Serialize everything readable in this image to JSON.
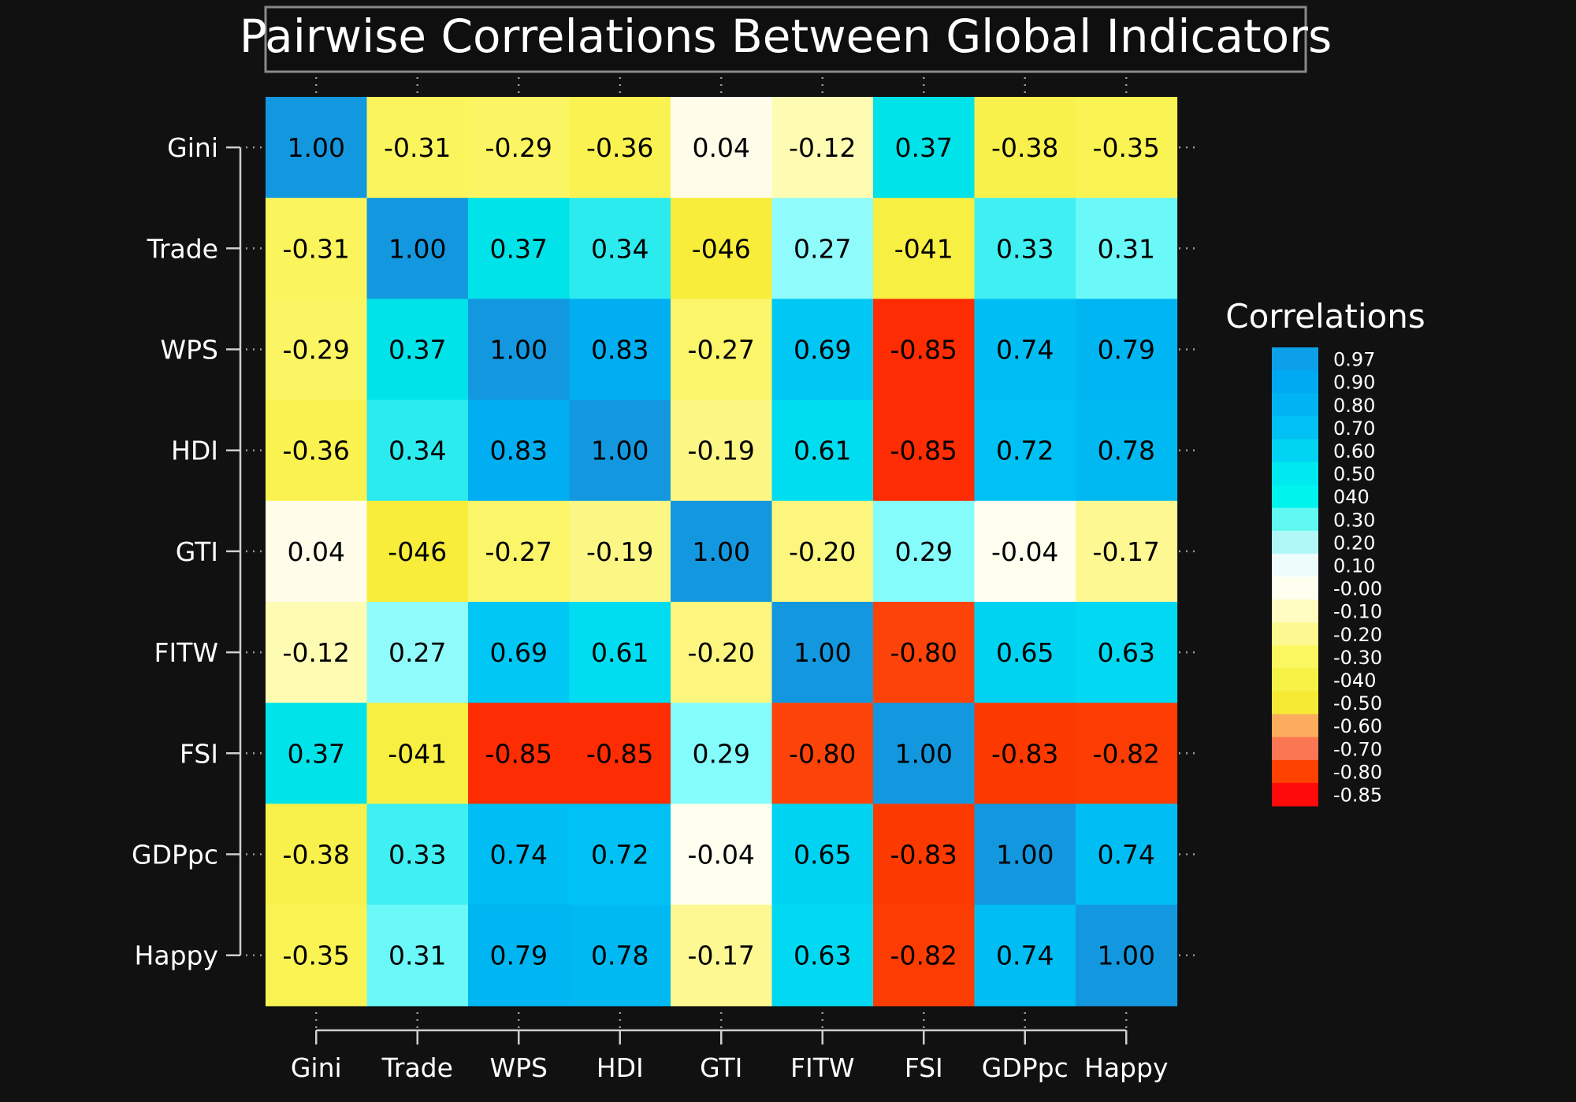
{
  "chart_data": {
    "type": "heatmap",
    "title": "Pairwise Correlations Between Global Indicators",
    "variables": [
      "Gini",
      "Trade",
      "WPS",
      "HDI",
      "GTI",
      "FITW",
      "FSI",
      "GDPpc",
      "Happy"
    ],
    "matrix": [
      [
        1.0,
        -0.31,
        -0.29,
        -0.36,
        0.04,
        -0.12,
        0.37,
        -0.38,
        -0.35
      ],
      [
        -0.31,
        1.0,
        0.37,
        0.34,
        -0.46,
        0.27,
        -0.41,
        0.33,
        0.31
      ],
      [
        -0.29,
        0.37,
        1.0,
        0.83,
        -0.27,
        0.69,
        -0.85,
        0.74,
        0.79
      ],
      [
        -0.36,
        0.34,
        0.83,
        1.0,
        -0.19,
        0.61,
        -0.85,
        0.72,
        0.78
      ],
      [
        0.04,
        -0.46,
        -0.27,
        -0.19,
        1.0,
        -0.2,
        0.29,
        -0.04,
        -0.17
      ],
      [
        -0.12,
        0.27,
        0.69,
        0.61,
        -0.2,
        1.0,
        -0.8,
        0.65,
        0.63
      ],
      [
        0.37,
        -0.41,
        -0.85,
        -0.85,
        0.29,
        -0.8,
        1.0,
        -0.83,
        -0.82
      ],
      [
        -0.38,
        0.33,
        0.74,
        0.72,
        -0.04,
        0.65,
        -0.83,
        1.0,
        0.74
      ],
      [
        -0.35,
        0.31,
        0.79,
        0.78,
        -0.17,
        0.63,
        -0.82,
        0.74,
        1.0
      ]
    ],
    "cell_labels": [
      [
        "1.00",
        "-0.31",
        "-0.29",
        "-0.36",
        "0.04",
        "-0.12",
        "0.37",
        "-0.38",
        "-0.35"
      ],
      [
        "-0.31",
        "1.00",
        "0.37",
        "0.34",
        "-046",
        "0.27",
        "-041",
        "0.33",
        "0.31"
      ],
      [
        "-0.29",
        "0.37",
        "1.00",
        "0.83",
        "-0.27",
        "0.69",
        "-0.85",
        "0.74",
        "0.79"
      ],
      [
        "-0.36",
        "0.34",
        "0.83",
        "1.00",
        "-0.19",
        "0.61",
        "-0.85",
        "0.72",
        "0.78"
      ],
      [
        "0.04",
        "-046",
        "-0.27",
        "-0.19",
        "1.00",
        "-0.20",
        "0.29",
        "-0.04",
        "-0.17"
      ],
      [
        "-0.12",
        "0.27",
        "0.69",
        "0.61",
        "-0.20",
        "1.00",
        "-0.80",
        "0.65",
        "0.63"
      ],
      [
        "0.37",
        "-041",
        "-0.85",
        "-0.85",
        "0.29",
        "-0.80",
        "1.00",
        "-0.83",
        "-0.82"
      ],
      [
        "-0.38",
        "0.33",
        "0.74",
        "0.72",
        "-0.04",
        "0.65",
        "-0.83",
        "1.00",
        "0.74"
      ],
      [
        "-0.35",
        "0.31",
        "0.79",
        "0.78",
        "-0.17",
        "0.63",
        "-0.82",
        "0.74",
        "1.00"
      ]
    ],
    "legend": {
      "title": "Correlations",
      "placement": "right",
      "labels": [
        "0.97",
        "0.90",
        "0.80",
        "0.70",
        "0.60",
        "0.50",
        "040",
        "0.30",
        "0.20",
        "0.10",
        "-0.00",
        "-0.10",
        "-0.20",
        "-0.30",
        "-040",
        "-0.50",
        "-0.60",
        "-0.70",
        "-0.80",
        "-0.85"
      ],
      "colors": [
        "#0ca0e8",
        "#00aaf2",
        "#00b4f4",
        "#00c0f4",
        "#00d4f2",
        "#00e8f0",
        "#00f4ee",
        "#60f8f0",
        "#b0f8f8",
        "#eefcfc",
        "#fffff0",
        "#fefcc0",
        "#fcf990",
        "#fbf760",
        "#f6f246",
        "#f7ea34",
        "#fbac5c",
        "#fb7754",
        "#fc4100",
        "#ff0a0a"
      ]
    }
  }
}
